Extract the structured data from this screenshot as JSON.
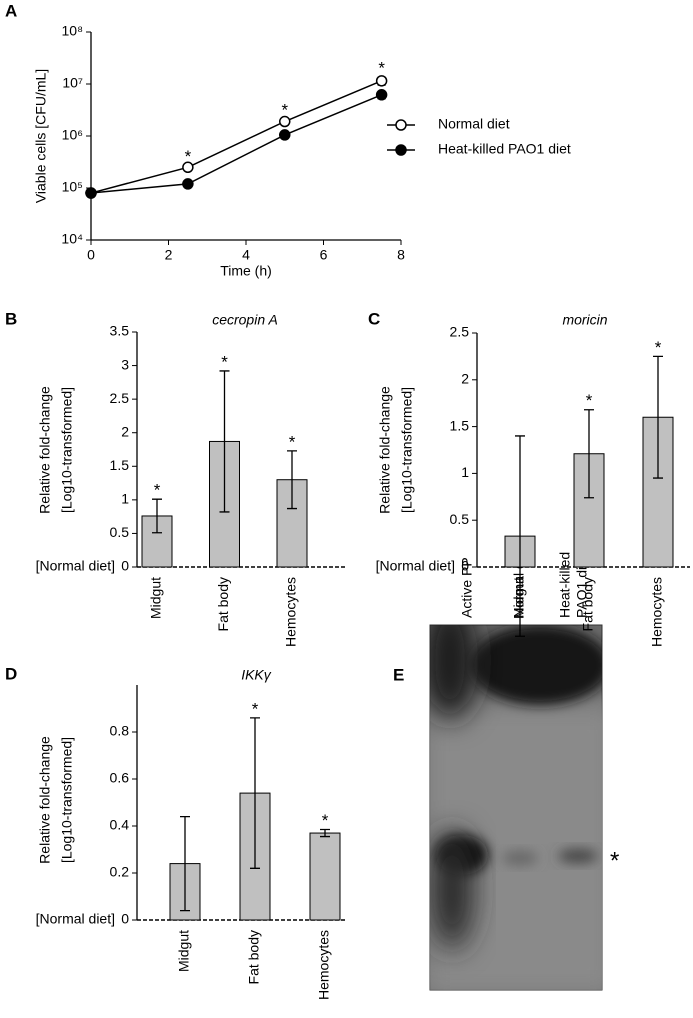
{
  "chart_data": [
    {
      "panel": "A",
      "type": "line",
      "xlabel": "Time (h)",
      "ylabel": "Viable cells [CFU/mL]",
      "x": [
        0,
        2.5,
        5,
        7.5
      ],
      "xlim": [
        0,
        8
      ],
      "xticks": [
        0,
        2,
        4,
        6,
        8
      ],
      "ylim": [
        10000,
        100000000
      ],
      "yscale": "log",
      "yticks": [
        {
          "value": 10000,
          "label": "10⁴"
        },
        {
          "value": 100000,
          "label": "10⁵"
        },
        {
          "value": 1000000,
          "label": "10⁶"
        },
        {
          "value": 10000000,
          "label": "10⁷"
        },
        {
          "value": 100000000,
          "label": "10⁸"
        }
      ],
      "series": [
        {
          "name": "Normal diet",
          "marker": "open",
          "color": "#000000",
          "values": [
            80000,
            250000,
            1900000,
            11500000
          ],
          "errors": [
            5000,
            20000,
            200000,
            2000000
          ]
        },
        {
          "name": "Heat-killed PAO1 diet",
          "marker": "filled",
          "color": "#000000",
          "values": [
            80000,
            120000,
            1050000,
            6200000
          ],
          "errors": [
            5000,
            10000,
            100000,
            1000000
          ]
        }
      ],
      "significance": [
        null,
        "*",
        "*",
        "*"
      ],
      "legend": "right"
    },
    {
      "panel": "B",
      "type": "bar",
      "title": "cecropin A",
      "ylabel": [
        "Relative fold-change",
        "[Log10-transformed]"
      ],
      "baseline_label": "[Normal diet]",
      "categories": [
        "Midgut",
        "Fat body",
        "Hemocytes"
      ],
      "values": [
        0.76,
        1.87,
        1.3
      ],
      "errors": [
        0.25,
        1.05,
        0.43
      ],
      "significance": [
        "*",
        "*",
        "*"
      ],
      "color": "#c0c0c0",
      "ylim": [
        0,
        3.5
      ],
      "yticks": [
        0,
        0.5,
        1,
        1.5,
        2,
        2.5,
        3,
        3.5
      ]
    },
    {
      "panel": "C",
      "type": "bar",
      "title": "moricin",
      "ylabel": [
        "Relative fold-change",
        "[Log10-transformed]"
      ],
      "baseline_label": "[Normal diet]",
      "categories": [
        "Midgut",
        "Fat body",
        "Hemocytes"
      ],
      "values": [
        0.33,
        1.21,
        1.6
      ],
      "errors": [
        1.07,
        0.47,
        0.65
      ],
      "significance": [
        null,
        "*",
        "*"
      ],
      "color": "#c0c0c0",
      "ylim": [
        0,
        2.5
      ],
      "yticks": [
        0,
        0.5,
        1,
        1.5,
        2,
        2.5
      ]
    },
    {
      "panel": "D",
      "type": "bar",
      "title": "IKKγ",
      "ylabel": [
        "Relative fold-change",
        "[Log10-transformed]"
      ],
      "baseline_label": "[Normal diet]",
      "categories": [
        "Midgut",
        "Fat body",
        "Hemocytes"
      ],
      "values": [
        0.24,
        0.54,
        0.37
      ],
      "errors": [
        0.2,
        0.32,
        0.015
      ],
      "significance": [
        null,
        "*",
        "*"
      ],
      "color": "#c0c0c0",
      "ylim": [
        0,
        1
      ],
      "yticks": [
        0,
        0.2,
        0.4,
        0.6,
        0.8
      ]
    }
  ],
  "blot": {
    "panel": "E",
    "lanes": [
      [
        "Active PP"
      ],
      [
        "Normal diet"
      ],
      [
        "Heat-killed",
        "PAO1 diet"
      ]
    ],
    "marker": "*"
  }
}
